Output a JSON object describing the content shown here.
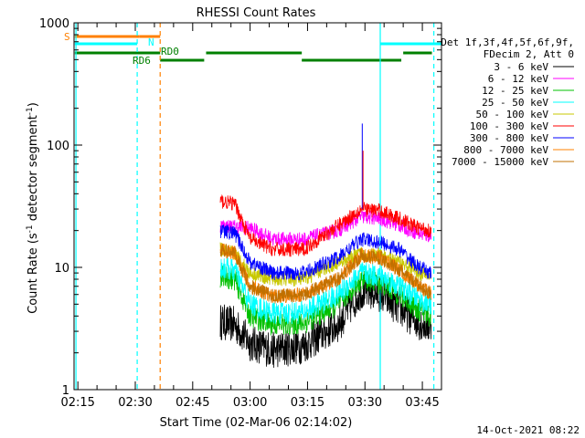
{
  "chart_data": {
    "type": "line",
    "title": "RHESSI Count Rates",
    "xlabel": "Start Time (02-Mar-06 02:14:02)",
    "ylabel_prefix": "Count Rate (s",
    "ylabel_sup1": "-1",
    "ylabel_mid": " detector segment",
    "ylabel_sup2": "-1",
    "ylabel_suffix": ")",
    "y_scale": "log",
    "ylim": [
      1,
      1000
    ],
    "y_ticks": [
      1,
      10,
      100,
      1000
    ],
    "y_tick_labels": [
      "1",
      "10",
      "100",
      "1000"
    ],
    "xlim_min": [
      134,
      230
    ],
    "x_ticks_min": [
      135,
      150,
      165,
      180,
      195,
      210,
      225
    ],
    "x_tick_labels": [
      "02:15",
      "02:30",
      "02:45",
      "03:00",
      "03:15",
      "03:30",
      "03:45"
    ],
    "legend_header": [
      "Det 1f,3f,4f,5f,6f,9f,",
      "FDecim 2, Att 0"
    ],
    "legend_position": "right",
    "series": [
      {
        "name": "3 - 6 keV",
        "color": "#000000",
        "values_at_x": [
          [
            172,
            3.6
          ],
          [
            176,
            3.4
          ],
          [
            180,
            2.4
          ],
          [
            186,
            2.1
          ],
          [
            194,
            2.3
          ],
          [
            203,
            3.4
          ],
          [
            209,
            6.4
          ],
          [
            214,
            6.1
          ],
          [
            219,
            4.6
          ],
          [
            224,
            3.6
          ],
          [
            227,
            3.3
          ]
        ]
      },
      {
        "name": "6 - 12 keV",
        "color": "#ff00ff",
        "values_at_x": [
          [
            172,
            22
          ],
          [
            180,
            21
          ],
          [
            186,
            17
          ],
          [
            194,
            17
          ],
          [
            203,
            20
          ],
          [
            209,
            26
          ],
          [
            214,
            25
          ],
          [
            219,
            22
          ],
          [
            224,
            19
          ],
          [
            227,
            18
          ]
        ]
      },
      {
        "name": "12 - 25 keV",
        "color": "#00c000",
        "values_at_x": [
          [
            172,
            8.5
          ],
          [
            176,
            8
          ],
          [
            180,
            4
          ],
          [
            186,
            3.4
          ],
          [
            194,
            3.5
          ],
          [
            203,
            5
          ],
          [
            209,
            8
          ],
          [
            214,
            7.5
          ],
          [
            219,
            6
          ],
          [
            224,
            4.5
          ],
          [
            227,
            4
          ]
        ]
      },
      {
        "name": "25 - 50 keV",
        "color": "#00ffff",
        "values_at_x": [
          [
            172,
            10
          ],
          [
            176,
            9.5
          ],
          [
            180,
            5
          ],
          [
            186,
            4.2
          ],
          [
            194,
            4.3
          ],
          [
            203,
            6
          ],
          [
            209,
            9
          ],
          [
            214,
            8.5
          ],
          [
            219,
            7
          ],
          [
            224,
            5.5
          ],
          [
            227,
            5
          ]
        ]
      },
      {
        "name": "50 - 100 keV",
        "color": "#c8c800",
        "values_at_x": [
          [
            172,
            14
          ],
          [
            176,
            13
          ],
          [
            180,
            9
          ],
          [
            186,
            8
          ],
          [
            194,
            8
          ],
          [
            203,
            11
          ],
          [
            209,
            13
          ],
          [
            214,
            12.5
          ],
          [
            219,
            11
          ],
          [
            224,
            9
          ],
          [
            227,
            8.5
          ]
        ]
      },
      {
        "name": "100 - 300 keV",
        "color": "#ff0000",
        "values_at_x": [
          [
            172,
            35
          ],
          [
            176,
            33
          ],
          [
            180,
            17
          ],
          [
            186,
            14
          ],
          [
            194,
            14
          ],
          [
            203,
            22
          ],
          [
            209,
            30
          ],
          [
            214,
            29
          ],
          [
            219,
            25
          ],
          [
            224,
            21
          ],
          [
            227,
            20
          ]
        ]
      },
      {
        "name": "300 - 800 keV",
        "color": "#0000ff",
        "values_at_x": [
          [
            172,
            20
          ],
          [
            176,
            19
          ],
          [
            180,
            11
          ],
          [
            186,
            9
          ],
          [
            194,
            9
          ],
          [
            203,
            12
          ],
          [
            209,
            17
          ],
          [
            214,
            16
          ],
          [
            219,
            14
          ],
          [
            224,
            10
          ],
          [
            227,
            9
          ]
        ]
      },
      {
        "name": "800 - 7000 keV",
        "color": "#ff8000",
        "values_at_x": [
          [
            172,
            14
          ],
          [
            176,
            13
          ],
          [
            180,
            7
          ],
          [
            186,
            5.8
          ],
          [
            194,
            6
          ],
          [
            203,
            8
          ],
          [
            209,
            12.5
          ],
          [
            214,
            12
          ],
          [
            219,
            9.5
          ],
          [
            224,
            7
          ],
          [
            227,
            6.2
          ]
        ]
      },
      {
        "name": "7000 - 15000 keV",
        "color": "#c07000",
        "values_at_x": [
          [
            172,
            14
          ],
          [
            176,
            13
          ],
          [
            180,
            7
          ],
          [
            186,
            5.8
          ],
          [
            194,
            6
          ],
          [
            203,
            8
          ],
          [
            209,
            12.5
          ],
          [
            214,
            12
          ],
          [
            219,
            9.5
          ],
          [
            224,
            7
          ],
          [
            227,
            6.2
          ]
        ]
      }
    ],
    "flags": [
      {
        "label": "SAA",
        "short": "S",
        "color": "#ff8000"
      },
      {
        "label": "Night",
        "short": "N",
        "color": "#00ffff"
      },
      {
        "label": "Decimation",
        "short": "RD6",
        "color": "#008000"
      },
      {
        "label": "Decimation",
        "short": "RD0",
        "color": "#008000"
      }
    ],
    "grid": false
  },
  "footer_date": "14-Oct-2021 08:22"
}
